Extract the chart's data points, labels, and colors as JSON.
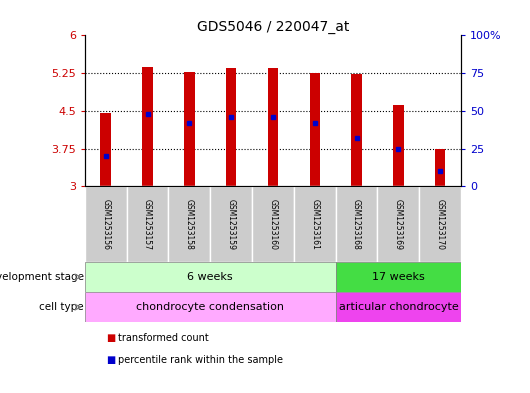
{
  "title": "GDS5046 / 220047_at",
  "samples": [
    "GSM1253156",
    "GSM1253157",
    "GSM1253158",
    "GSM1253159",
    "GSM1253160",
    "GSM1253161",
    "GSM1253168",
    "GSM1253169",
    "GSM1253170"
  ],
  "bar_bottom": 3.0,
  "transformed_counts": [
    4.45,
    5.38,
    5.28,
    5.36,
    5.35,
    5.25,
    5.24,
    4.62,
    3.75
  ],
  "percentile_ranks": [
    20,
    48,
    42,
    46,
    46,
    42,
    32,
    25,
    10
  ],
  "ylim": [
    3.0,
    6.0
  ],
  "yticks_left": [
    3.0,
    3.75,
    4.5,
    5.25,
    6.0
  ],
  "ytick_labels_left": [
    "3",
    "3.75",
    "4.5",
    "5.25",
    "6"
  ],
  "yticks_right_vals": [
    0,
    25,
    50,
    75,
    100
  ],
  "ytick_labels_right": [
    "0",
    "25",
    "50",
    "75",
    "100%"
  ],
  "bar_color": "#cc0000",
  "dot_color": "#0000cc",
  "left_tick_color": "#cc0000",
  "right_tick_color": "#0000cc",
  "group1_label": "6 weeks",
  "group2_label": "17 weeks",
  "group1_indices": [
    0,
    1,
    2,
    3,
    4,
    5
  ],
  "group2_indices": [
    6,
    7,
    8
  ],
  "celltype1_label": "chondrocyte condensation",
  "celltype2_label": "articular chondrocyte",
  "dev_stage_label": "development stage",
  "cell_type_label": "cell type",
  "group1_color": "#ccffcc",
  "group2_color": "#44dd44",
  "celltype1_color": "#ffaaff",
  "celltype2_color": "#ee44ee",
  "sample_box_color": "#cccccc",
  "legend_bar_label": "transformed count",
  "legend_dot_label": "percentile rank within the sample",
  "bar_width": 0.25
}
